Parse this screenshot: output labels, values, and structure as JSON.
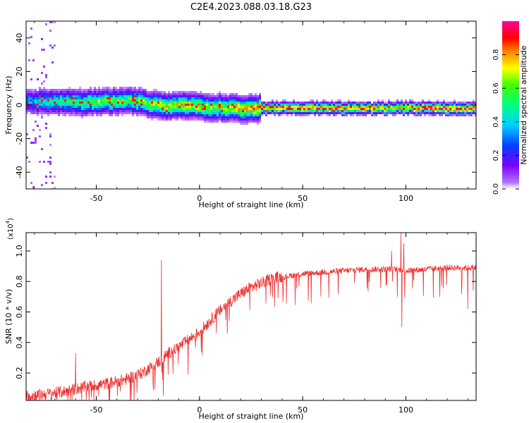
{
  "title": "C2E4.2023.088.03.18.G23",
  "chart_data": [
    {
      "type": "heatmap",
      "title": "C2E4.2023.088.03.18.G23",
      "xlabel": "Height of straight line (km)",
      "ylabel": "Frequency (Hz)",
      "xlim": [
        -84,
        134
      ],
      "ylim": [
        -50,
        50
      ],
      "xticks": [
        -50,
        0,
        50,
        100
      ],
      "yticks": [
        -40,
        -20,
        0,
        20,
        40
      ],
      "xtick_labels": [
        "-50",
        "0",
        "50",
        "100"
      ],
      "ytick_labels": [
        "-40",
        "-20",
        "0",
        "20",
        "40"
      ],
      "grid": false,
      "colorbar": {
        "label": "Normalized spectral amplitude",
        "range": [
          0,
          1
        ],
        "ticks": [
          0.0,
          0.2,
          0.4,
          0.6,
          0.8
        ],
        "tick_labels": [
          "0.0",
          "0.2",
          "0.4",
          "0.6",
          "0.8"
        ],
        "colormap": "rainbow (white → purple → blue → cyan → green → yellow → red → magenta)"
      },
      "ridge": {
        "x": [
          -84,
          -75,
          -65,
          -55,
          -45,
          -35,
          -30,
          -25,
          -20,
          -15,
          -10,
          -5,
          0,
          5,
          10,
          20,
          30,
          50,
          70,
          85,
          90,
          95,
          100,
          110,
          120,
          134
        ],
        "frequency": [
          2,
          2,
          1.5,
          1.5,
          2,
          2.5,
          2,
          0.5,
          -0.5,
          -1,
          -0.5,
          -0.5,
          -1,
          -1.5,
          -1.5,
          -2,
          -2,
          -2,
          -2,
          -2,
          -2,
          -1.5,
          -2,
          -2,
          -2,
          -2
        ],
        "amplitude": [
          0.3,
          0.45,
          0.5,
          0.55,
          0.6,
          0.55,
          0.6,
          0.6,
          0.7,
          0.65,
          0.7,
          0.7,
          0.7,
          0.65,
          0.7,
          0.75,
          0.8,
          0.85,
          0.88,
          0.8,
          0.75,
          0.7,
          0.85,
          0.9,
          0.9,
          0.9
        ]
      }
    },
    {
      "type": "line",
      "xlabel": "Height of straight line (km)",
      "ylabel": "SNR (10 * v/v)",
      "y_multiplier_label": "(x10",
      "y_multiplier_exponent": "4",
      "xlim": [
        -84,
        134
      ],
      "ylim": [
        0.02,
        1.12
      ],
      "xticks": [
        -50,
        0,
        50,
        100
      ],
      "yticks": [
        0.2,
        0.4,
        0.6,
        0.8,
        1.0
      ],
      "xtick_labels": [
        "-50",
        "0",
        "50",
        "100"
      ],
      "ytick_labels": [
        "0.2",
        "0.4",
        "0.6",
        "0.8",
        "1.0"
      ],
      "grid": false,
      "line_color": "#ee3333",
      "trend": {
        "x": [
          -84,
          -75,
          -65,
          -55,
          -45,
          -35,
          -28,
          -20,
          -15,
          -10,
          -5,
          0,
          5,
          10,
          15,
          20,
          25,
          30,
          35,
          40,
          50,
          60,
          70,
          80,
          90,
          95,
          100,
          110,
          120,
          134
        ],
        "y": [
          0.05,
          0.06,
          0.08,
          0.11,
          0.13,
          0.16,
          0.2,
          0.27,
          0.33,
          0.37,
          0.42,
          0.47,
          0.54,
          0.61,
          0.67,
          0.72,
          0.76,
          0.79,
          0.82,
          0.83,
          0.85,
          0.86,
          0.87,
          0.88,
          0.88,
          0.88,
          0.87,
          0.88,
          0.89,
          0.89
        ]
      },
      "spikes": [
        {
          "x": -60,
          "y": 0.33
        },
        {
          "x": -18.5,
          "y": 0.94
        },
        {
          "x": -17.5,
          "y": 0.05
        },
        {
          "x": 93,
          "y": 1.0
        },
        {
          "x": 97.5,
          "y": 1.12
        },
        {
          "x": 98,
          "y": 0.5
        },
        {
          "x": 99,
          "y": 1.05
        },
        {
          "x": 130,
          "y": 0.62
        }
      ]
    }
  ]
}
